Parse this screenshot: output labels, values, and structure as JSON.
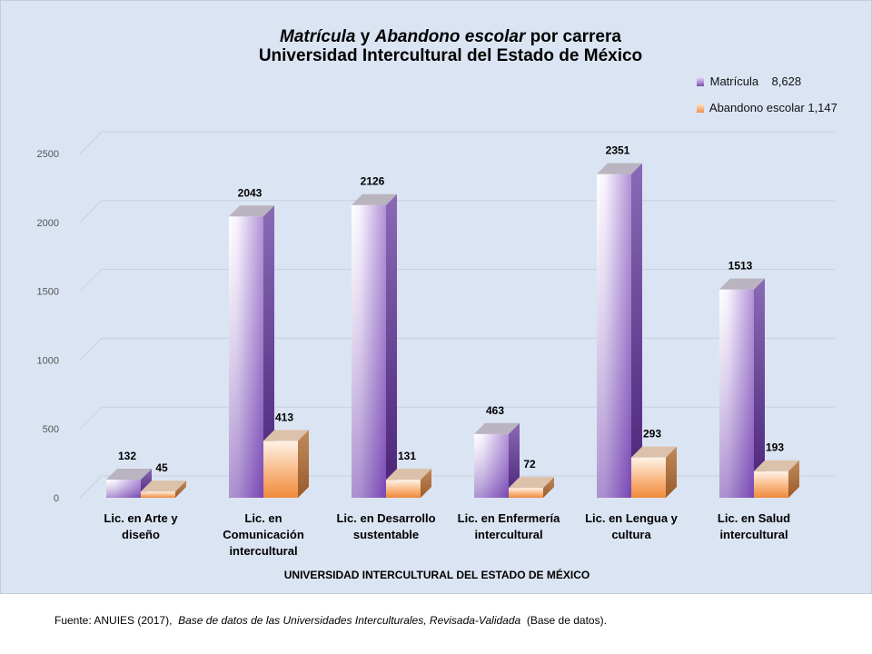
{
  "title": {
    "part1": "Matrícula",
    "part2": "y",
    "part3": "Abandono escolar",
    "part4": "por carrera",
    "line2": "Universidad Intercultural del Estado de México"
  },
  "source": {
    "prefix": "Fuente: ANUIES (2017),",
    "italic": "Base de datos de las Universidades Interculturales, Revisada-Validada",
    "suffix": "(Base de datos)."
  },
  "colors": {
    "matricula": "#7b4db5",
    "abandono": "#f3914a",
    "background": "#dbe4f3"
  },
  "chart_data": {
    "type": "bar",
    "categories": [
      [
        "Lic. en Arte y",
        "diseño"
      ],
      [
        "Lic. en",
        "Comunicación",
        "intercultural"
      ],
      [
        "Lic. en Desarrollo",
        "sustentable"
      ],
      [
        "Lic. en Enfermería",
        "intercultural"
      ],
      [
        "Lic. en Lengua y",
        "cultura"
      ],
      [
        "Lic. en Salud",
        "intercultural"
      ]
    ],
    "series": [
      {
        "name": "Matrícula",
        "legend_value": "8,628",
        "values": [
          132,
          2043,
          2126,
          463,
          2351,
          1513
        ]
      },
      {
        "name": "Abandono escolar",
        "legend_value": "1,147",
        "values": [
          45,
          413,
          131,
          72,
          293,
          193
        ]
      }
    ],
    "xlabel": "UNIVERSIDAD INTERCULTURAL DEL ESTADO DE MÉXICO",
    "ylabel": "",
    "ylim": [
      0,
      2500
    ],
    "yticks": [
      0,
      500,
      1000,
      1500,
      2000,
      2500
    ],
    "grid": true,
    "legend_position": "top-right",
    "style": "3d-bar"
  }
}
